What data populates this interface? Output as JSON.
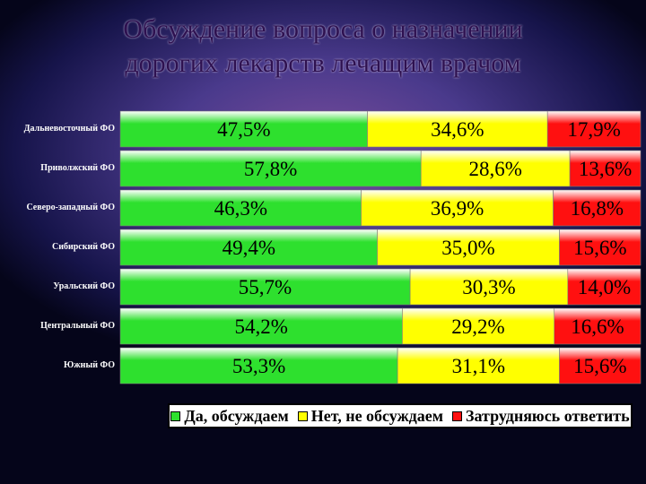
{
  "title": {
    "line1": "Обсуждение вопроса о назначении",
    "line2": "дорогих лекарств лечащим врачом"
  },
  "colors": {
    "yes": "#2ee02e",
    "no": "#ffff00",
    "hard": "#ff1010"
  },
  "chart_data": {
    "type": "bar",
    "orientation": "horizontal",
    "stacked": true,
    "percent_stacked": true,
    "categories": [
      "Дальневосточный ФО",
      "Приволжский ФО",
      "Северо-западный ФО",
      "Сибирский ФО",
      "Уральский ФО",
      "Центральный ФО",
      "Южный ФО"
    ],
    "series": [
      {
        "name": "Да, обсуждаем",
        "values": [
          47.5,
          57.8,
          46.3,
          49.4,
          55.7,
          54.2,
          53.3
        ],
        "labels": [
          "47,5%",
          "57,8%",
          "46,3%",
          "49,4%",
          "55,7%",
          "54,2%",
          "53,3%"
        ]
      },
      {
        "name": "Нет, не обсуждаем",
        "values": [
          34.6,
          28.6,
          36.9,
          35.0,
          30.3,
          29.2,
          31.1
        ],
        "labels": [
          "34,6%",
          "28,6%",
          "36,9%",
          "35,0%",
          "30,3%",
          "29,2%",
          "31,1%"
        ]
      },
      {
        "name": "Затрудняюсь ответить",
        "values": [
          17.9,
          13.6,
          16.8,
          15.6,
          14.0,
          16.6,
          15.6
        ],
        "labels": [
          "17,9%",
          "13,6%",
          "16,8%",
          "15,6%",
          "14,0%",
          "16,6%",
          "15,6%"
        ]
      }
    ],
    "legend_position": "bottom",
    "grid": false
  }
}
